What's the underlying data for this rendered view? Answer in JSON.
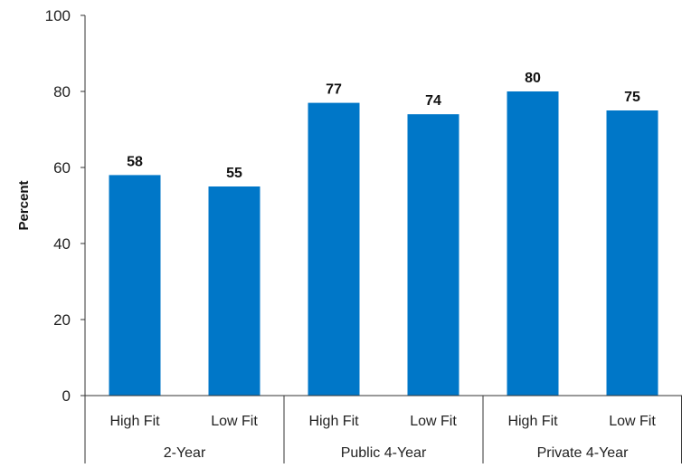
{
  "chart_data": {
    "type": "bar",
    "ylabel": "Percent",
    "ylim": [
      0,
      100
    ],
    "yticks": [
      0,
      20,
      40,
      60,
      80,
      100
    ],
    "grid": false,
    "bar_color": "#0077C8",
    "groups": [
      {
        "label": "2-Year",
        "categories": [
          "High Fit",
          "Low Fit"
        ],
        "values": [
          58,
          55
        ]
      },
      {
        "label": "Public 4-Year",
        "categories": [
          "High Fit",
          "Low Fit"
        ],
        "values": [
          77,
          74
        ]
      },
      {
        "label": "Private 4-Year",
        "categories": [
          "High Fit",
          "Low Fit"
        ],
        "values": [
          80,
          75
        ]
      }
    ]
  }
}
